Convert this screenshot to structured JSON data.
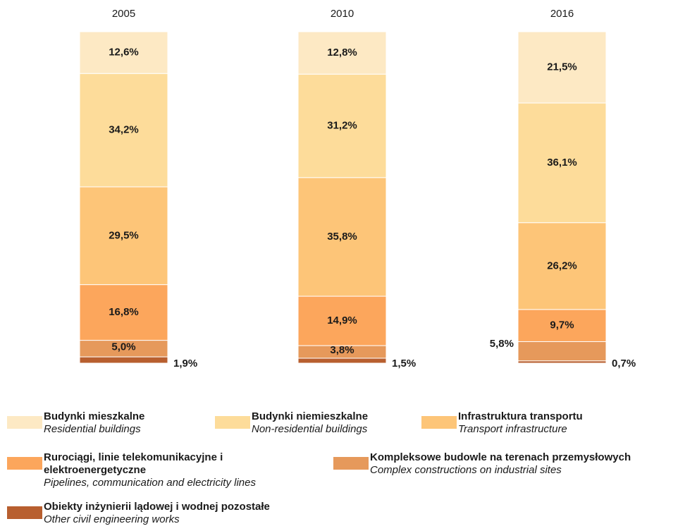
{
  "chart_data": {
    "type": "stacked_bar",
    "categories": [
      "2005",
      "2010",
      "2016"
    ],
    "ylim": [
      0,
      100
    ],
    "series": [
      {
        "name": "Budynki mieszkalne",
        "name_en": "Residential buildings",
        "color": "#fde9c4",
        "values": [
          12.6,
          12.8,
          21.5
        ],
        "value_labels": [
          "12,6%",
          "12,8%",
          "21,5%"
        ]
      },
      {
        "name": "Budynki niemieszkalne",
        "name_en": "Non-residential buildings",
        "color": "#fddc9a",
        "values": [
          34.2,
          31.2,
          36.1
        ],
        "value_labels": [
          "34,2%",
          "31,2%",
          "36,1%"
        ]
      },
      {
        "name": "Infrastruktura transportu",
        "name_en": "Transport infrastructure",
        "color": "#fdc578",
        "values": [
          29.5,
          35.8,
          26.2
        ],
        "value_labels": [
          "29,5%",
          "35,8%",
          "26,2%"
        ]
      },
      {
        "name": "Rurociągi, linie telekomunikacyjne i elektroenergetyczne",
        "name_en": "Pipelines, communication and electricity lines",
        "color": "#fca65c",
        "values": [
          16.8,
          14.9,
          9.7
        ],
        "value_labels": [
          "16,8%",
          "14,9%",
          "9,7%"
        ]
      },
      {
        "name": "Kompleksowe budowle na terenach przemysłowych",
        "name_en": "Complex constructions on industrial sites",
        "color": "#e6995b",
        "values": [
          5.0,
          3.8,
          5.8
        ],
        "value_labels": [
          "5,0%",
          "3,8%",
          "5,8%"
        ]
      },
      {
        "name": "Obiekty inżynierii lądowej i wodnej pozostałe",
        "name_en": "Other civil engineering works",
        "color": "#b85f2f",
        "values": [
          1.9,
          1.5,
          0.7
        ],
        "value_labels": [
          "1,9%",
          "1,5%",
          "0,7%"
        ]
      }
    ]
  }
}
